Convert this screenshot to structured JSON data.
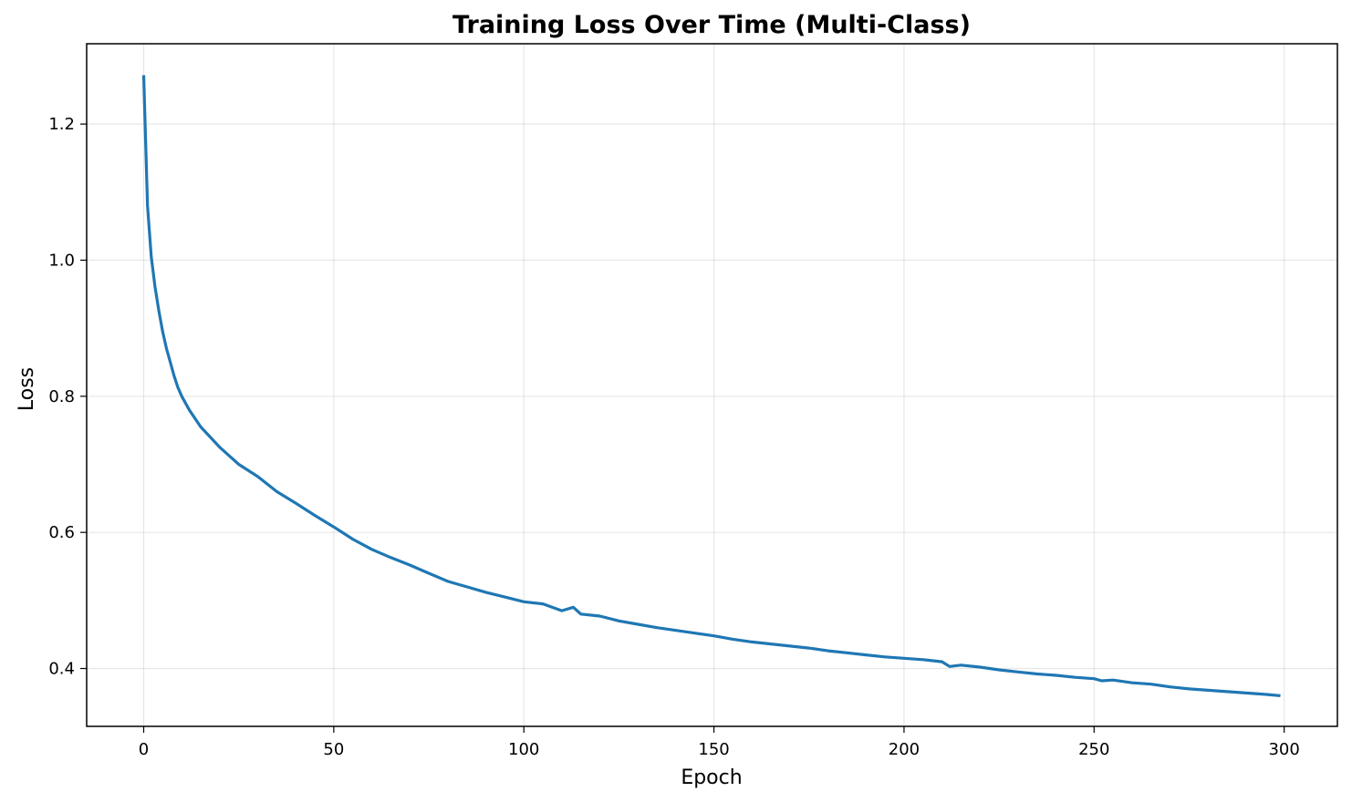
{
  "chart_data": {
    "type": "line",
    "title": "Training Loss Over Time (Multi-Class)",
    "xlabel": "Epoch",
    "ylabel": "Loss",
    "xlim": [
      -15,
      314
    ],
    "ylim": [
      0.315,
      1.318
    ],
    "xticks": [
      0,
      50,
      100,
      150,
      200,
      250,
      300
    ],
    "yticks": [
      0.4,
      0.6,
      0.8,
      1.0,
      1.2
    ],
    "ytick_labels": [
      "0.4",
      "0.6",
      "0.8",
      "1.0",
      "1.2"
    ],
    "grid": true,
    "series": [
      {
        "color": "#1f77b4",
        "x": [
          0,
          1,
          2,
          3,
          4,
          5,
          6,
          7,
          8,
          9,
          10,
          12,
          15,
          20,
          25,
          30,
          35,
          40,
          45,
          50,
          55,
          60,
          65,
          70,
          75,
          80,
          85,
          90,
          95,
          100,
          105,
          110,
          113,
          115,
          120,
          125,
          130,
          135,
          140,
          145,
          150,
          155,
          160,
          165,
          170,
          175,
          180,
          185,
          190,
          195,
          200,
          205,
          210,
          212,
          215,
          220,
          225,
          230,
          235,
          240,
          245,
          250,
          252,
          255,
          260,
          265,
          270,
          275,
          280,
          285,
          290,
          295,
          299
        ],
        "y": [
          1.272,
          1.08,
          1.005,
          0.96,
          0.925,
          0.895,
          0.87,
          0.85,
          0.83,
          0.813,
          0.8,
          0.78,
          0.755,
          0.725,
          0.7,
          0.682,
          0.66,
          0.643,
          0.625,
          0.608,
          0.59,
          0.575,
          0.563,
          0.552,
          0.54,
          0.528,
          0.52,
          0.512,
          0.505,
          0.498,
          0.495,
          0.485,
          0.49,
          0.48,
          0.477,
          0.47,
          0.465,
          0.46,
          0.456,
          0.452,
          0.448,
          0.443,
          0.439,
          0.436,
          0.433,
          0.43,
          0.426,
          0.423,
          0.42,
          0.417,
          0.415,
          0.413,
          0.41,
          0.403,
          0.405,
          0.402,
          0.398,
          0.395,
          0.392,
          0.39,
          0.387,
          0.385,
          0.382,
          0.383,
          0.379,
          0.377,
          0.373,
          0.37,
          0.368,
          0.366,
          0.364,
          0.362,
          0.36
        ]
      }
    ]
  }
}
